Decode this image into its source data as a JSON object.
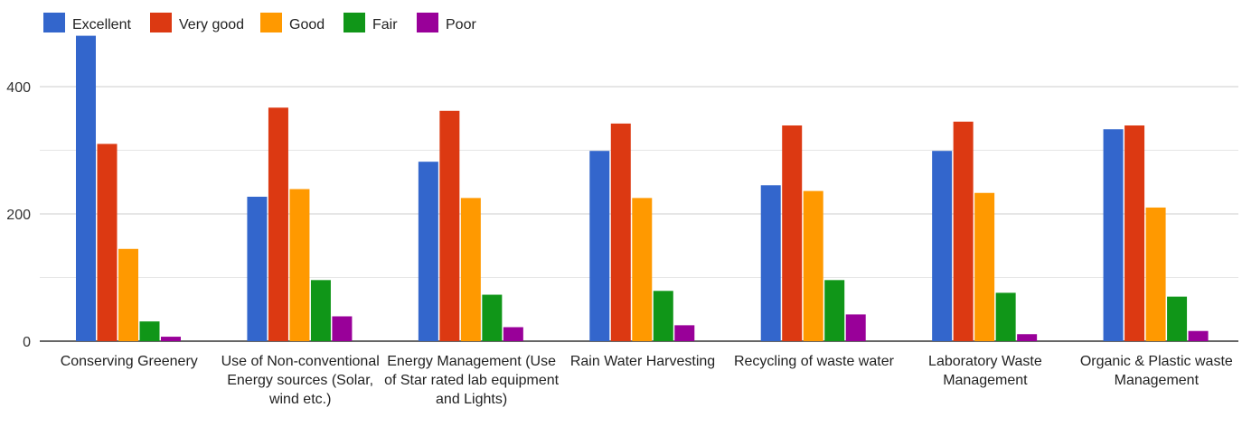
{
  "chart_data": {
    "type": "bar",
    "title": "",
    "xlabel": "",
    "ylabel": "",
    "ylim": [
      0,
      480
    ],
    "yticks": [
      0,
      200,
      400
    ],
    "grid": true,
    "legend_position": "top-left",
    "categories": [
      [
        "Conserving Greenery"
      ],
      [
        "Use of Non-conventional",
        "Energy sources (Solar,",
        "wind etc.)"
      ],
      [
        "Energy Management (Use",
        "of Star rated lab equipment",
        "and Lights)"
      ],
      [
        "Rain Water Harvesting"
      ],
      [
        "Recycling of waste water"
      ],
      [
        "Laboratory Waste",
        "Management"
      ],
      [
        "Organic & Plastic waste",
        "Management"
      ]
    ],
    "series": [
      {
        "name": "Excellent",
        "color": "#3366cc",
        "values": [
          480,
          227,
          282,
          299,
          245,
          299,
          333
        ]
      },
      {
        "name": "Very good",
        "color": "#dc3912",
        "values": [
          310,
          367,
          362,
          342,
          339,
          345,
          339
        ]
      },
      {
        "name": "Good",
        "color": "#ff9900",
        "values": [
          145,
          239,
          225,
          225,
          236,
          233,
          210
        ]
      },
      {
        "name": "Fair",
        "color": "#109618",
        "values": [
          31,
          96,
          73,
          79,
          96,
          76,
          70
        ]
      },
      {
        "name": "Poor",
        "color": "#990099",
        "values": [
          7,
          39,
          22,
          25,
          42,
          11,
          16
        ]
      }
    ]
  }
}
